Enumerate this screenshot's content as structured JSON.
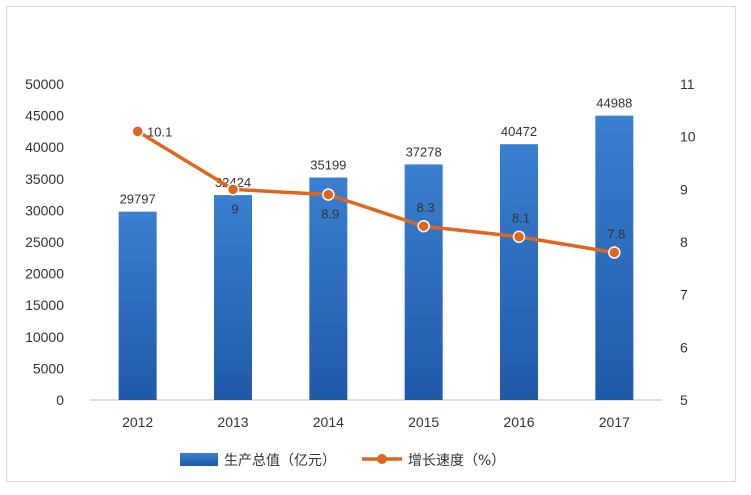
{
  "chart_data": {
    "type": "bar",
    "categories": [
      "2012",
      "2013",
      "2014",
      "2015",
      "2016",
      "2017"
    ],
    "series": [
      {
        "name": "生产总值（亿元）",
        "type": "bar",
        "axis": "left",
        "values": [
          29797,
          32424,
          35199,
          37278,
          40472,
          44988
        ],
        "labels": [
          "29797",
          "32424",
          "35199",
          "37278",
          "40472",
          "44988"
        ],
        "color": "#2f6fbf"
      },
      {
        "name": "增长速度（%）",
        "type": "line",
        "axis": "right",
        "values": [
          10.1,
          9,
          8.9,
          8.3,
          8.1,
          7.8
        ],
        "labels": [
          "10.1",
          "9",
          "8.9",
          "8.3",
          "8.1",
          "7.8"
        ],
        "color": "#e0661f"
      }
    ],
    "y_left": {
      "ylim": [
        0,
        50000
      ],
      "ticks": [
        "0",
        "5000",
        "10000",
        "15000",
        "20000",
        "25000",
        "30000",
        "35000",
        "40000",
        "45000",
        "50000"
      ]
    },
    "y_right": {
      "ylim": [
        5,
        11
      ],
      "ticks": [
        "5",
        "6",
        "7",
        "8",
        "9",
        "10",
        "11"
      ]
    },
    "grid": false,
    "legend_position": "bottom"
  }
}
